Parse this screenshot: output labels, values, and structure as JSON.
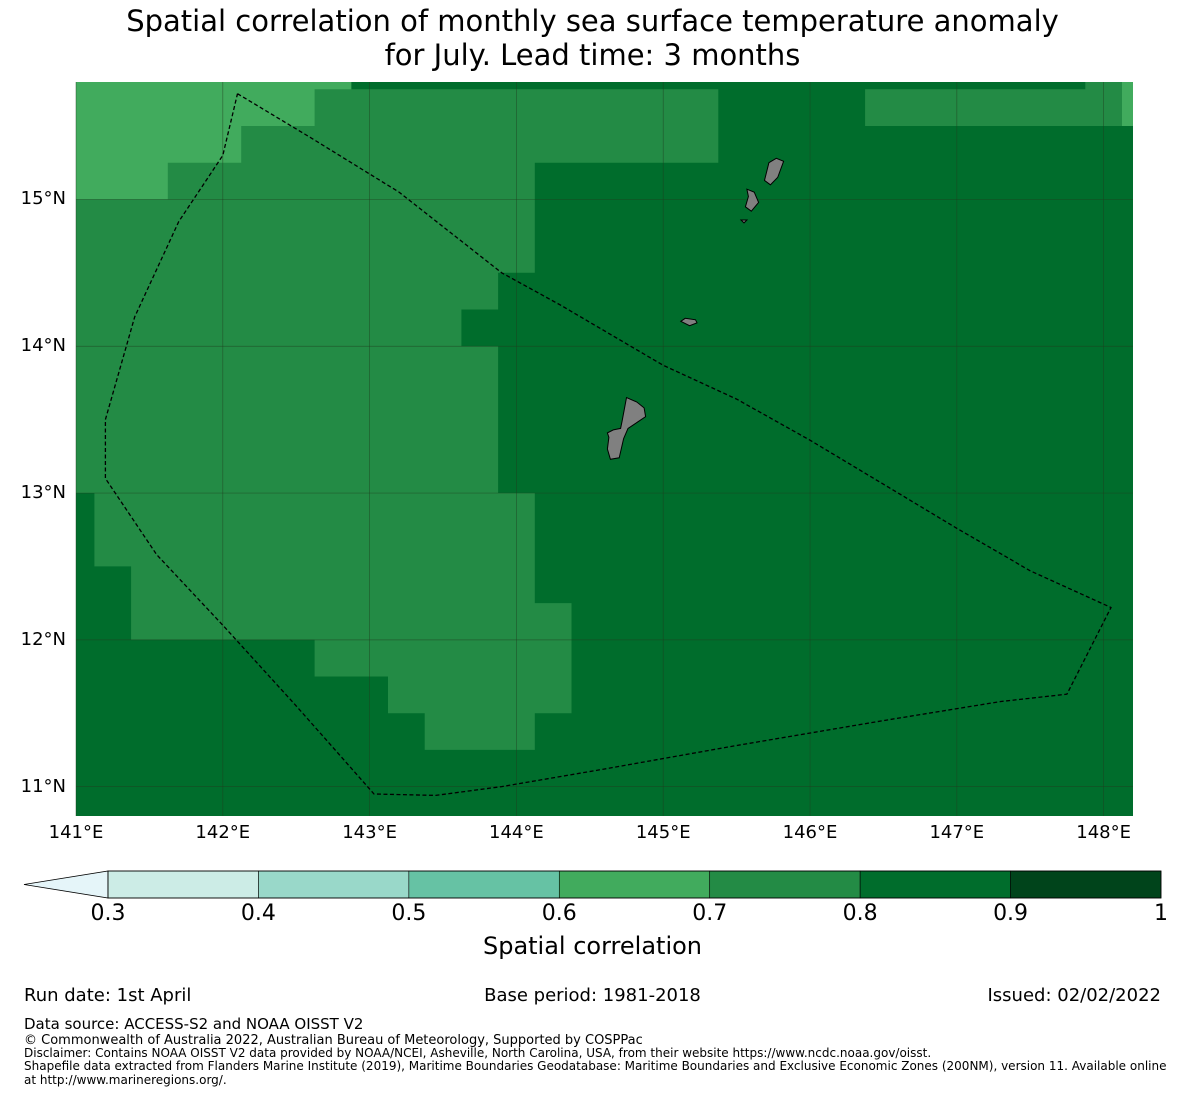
{
  "title_line1": "Spatial correlation of monthly sea surface temperature anomaly",
  "title_line2": "for July. Lead time: 3 months",
  "map": {
    "lon_range": [
      141.0,
      148.2
    ],
    "lat_range": [
      10.8,
      15.8
    ],
    "lat_ticks": [
      {
        "value": 15,
        "label": "15°N"
      },
      {
        "value": 14,
        "label": "14°N"
      },
      {
        "value": 13,
        "label": "13°N"
      },
      {
        "value": 12,
        "label": "12°N"
      },
      {
        "value": 11,
        "label": "11°N"
      }
    ],
    "lon_ticks": [
      {
        "value": 141,
        "label": "141°E"
      },
      {
        "value": 142,
        "label": "142°E"
      },
      {
        "value": 143,
        "label": "143°E"
      },
      {
        "value": 144,
        "label": "144°E"
      },
      {
        "value": 145,
        "label": "145°E"
      },
      {
        "value": 146,
        "label": "146°E"
      },
      {
        "value": 147,
        "label": "147°E"
      },
      {
        "value": 148,
        "label": "148°E"
      }
    ],
    "colors": {
      "class_0_6_0_7": "#41ab5d",
      "class_0_7_0_8": "#238b45",
      "class_0_8_0_9": "#006d2c",
      "land": "#808080",
      "grid": "#1f3d1f"
    },
    "correlation_regions": [
      {
        "class": "class_0_8_0_9",
        "polygon": [
          [
            141.0,
            15.8
          ],
          [
            148.2,
            15.8
          ],
          [
            148.2,
            10.8
          ],
          [
            141.0,
            10.8
          ]
        ]
      },
      {
        "class": "class_0_7_0_8",
        "polygon": [
          [
            141.0,
            15.8
          ],
          [
            142.875,
            15.8
          ],
          [
            142.875,
            15.75
          ],
          [
            145.375,
            15.75
          ],
          [
            145.375,
            15.5
          ],
          [
            146.375,
            15.5
          ],
          [
            146.375,
            15.75
          ],
          [
            147.875,
            15.75
          ],
          [
            147.875,
            15.8
          ],
          [
            148.2,
            15.8
          ],
          [
            148.2,
            15.5
          ],
          [
            145.375,
            15.5
          ],
          [
            145.375,
            15.25
          ],
          [
            144.125,
            15.25
          ],
          [
            144.125,
            15.0
          ],
          [
            144.125,
            14.5
          ],
          [
            143.875,
            14.5
          ],
          [
            143.875,
            14.25
          ],
          [
            143.625,
            14.25
          ],
          [
            143.625,
            14.0
          ],
          [
            143.875,
            14.0
          ],
          [
            143.875,
            13.0
          ],
          [
            144.125,
            13.0
          ],
          [
            144.125,
            12.25
          ],
          [
            144.375,
            12.25
          ],
          [
            144.375,
            11.5
          ],
          [
            144.125,
            11.5
          ],
          [
            144.125,
            11.25
          ],
          [
            143.375,
            11.25
          ],
          [
            143.375,
            11.5
          ],
          [
            143.125,
            11.5
          ],
          [
            143.125,
            11.75
          ],
          [
            142.625,
            11.75
          ],
          [
            142.625,
            12.0
          ],
          [
            141.375,
            12.0
          ],
          [
            141.375,
            12.5
          ],
          [
            141.125,
            12.5
          ],
          [
            141.125,
            13.0
          ],
          [
            141.0,
            13.0
          ]
        ]
      },
      {
        "class": "class_0_6_0_7",
        "polygon": [
          [
            141.0,
            15.8
          ],
          [
            142.875,
            15.8
          ],
          [
            142.875,
            15.75
          ],
          [
            142.625,
            15.75
          ],
          [
            142.625,
            15.5
          ],
          [
            142.125,
            15.5
          ],
          [
            142.125,
            15.25
          ],
          [
            141.625,
            15.25
          ],
          [
            141.625,
            15.0
          ],
          [
            141.0,
            15.0
          ]
        ]
      },
      {
        "class": "class_0_6_0_7",
        "polygon": [
          [
            148.125,
            15.8
          ],
          [
            148.2,
            15.8
          ],
          [
            148.2,
            15.5
          ],
          [
            148.125,
            15.5
          ]
        ]
      }
    ],
    "islands": [
      {
        "name": "Guam",
        "polygon": [
          [
            144.75,
            13.65
          ],
          [
            144.82,
            13.62
          ],
          [
            144.87,
            13.58
          ],
          [
            144.88,
            13.52
          ],
          [
            144.82,
            13.48
          ],
          [
            144.76,
            13.44
          ],
          [
            144.73,
            13.37
          ],
          [
            144.7,
            13.24
          ],
          [
            144.64,
            13.23
          ],
          [
            144.62,
            13.3
          ],
          [
            144.63,
            13.38
          ],
          [
            144.62,
            13.41
          ],
          [
            144.66,
            13.43
          ],
          [
            144.71,
            13.44
          ],
          [
            144.72,
            13.49
          ]
        ]
      },
      {
        "name": "Rota",
        "polygon": [
          [
            145.12,
            14.17
          ],
          [
            145.18,
            14.14
          ],
          [
            145.23,
            14.16
          ],
          [
            145.22,
            14.18
          ],
          [
            145.15,
            14.19
          ]
        ]
      },
      {
        "name": "Tinian",
        "polygon": [
          [
            145.57,
            15.07
          ],
          [
            145.62,
            15.05
          ],
          [
            145.65,
            14.98
          ],
          [
            145.6,
            14.92
          ],
          [
            145.56,
            14.95
          ],
          [
            145.58,
            15.02
          ]
        ]
      },
      {
        "name": "Saipan",
        "polygon": [
          [
            145.72,
            15.25
          ],
          [
            145.77,
            15.28
          ],
          [
            145.82,
            15.26
          ],
          [
            145.78,
            15.15
          ],
          [
            145.73,
            15.1
          ],
          [
            145.69,
            15.13
          ]
        ]
      },
      {
        "name": "Aguijan",
        "polygon": [
          [
            145.53,
            14.86
          ],
          [
            145.57,
            14.86
          ],
          [
            145.55,
            14.84
          ]
        ]
      }
    ],
    "eez_boundary": [
      [
        142.1,
        15.72
      ],
      [
        142.6,
        15.42
      ],
      [
        143.2,
        15.05
      ],
      [
        143.9,
        14.5
      ],
      [
        144.3,
        14.28
      ],
      [
        145.0,
        13.87
      ],
      [
        145.5,
        13.64
      ],
      [
        146.0,
        13.36
      ],
      [
        146.5,
        13.06
      ],
      [
        147.0,
        12.76
      ],
      [
        147.5,
        12.47
      ],
      [
        148.05,
        12.22
      ],
      [
        147.75,
        11.63
      ],
      [
        147.3,
        11.58
      ],
      [
        146.5,
        11.45
      ],
      [
        145.5,
        11.28
      ],
      [
        144.6,
        11.12
      ],
      [
        143.9,
        11.0
      ],
      [
        143.45,
        10.94
      ],
      [
        143.03,
        10.95
      ],
      [
        142.5,
        11.55
      ],
      [
        142.0,
        12.1
      ],
      [
        141.55,
        12.58
      ],
      [
        141.2,
        13.1
      ],
      [
        141.2,
        13.5
      ],
      [
        141.4,
        14.2
      ],
      [
        141.7,
        14.85
      ],
      [
        142.0,
        15.3
      ],
      [
        142.1,
        15.72
      ]
    ]
  },
  "colorbar": {
    "label": "Spatial correlation",
    "levels": [
      0.3,
      0.4,
      0.5,
      0.6,
      0.7,
      0.8,
      0.9,
      1.0
    ],
    "tick_labels": [
      "0.3",
      "0.4",
      "0.5",
      "0.6",
      "0.7",
      "0.8",
      "0.9",
      "1"
    ],
    "under_color": "#e5f5f9",
    "bin_colors": [
      "#ccece6",
      "#99d8c9",
      "#66c2a4",
      "#41ab5d",
      "#238b45",
      "#006d2c",
      "#00441b"
    ]
  },
  "run_date": "Run date: 1st April",
  "base_period": "Base period: 1981-2018",
  "issued": "Issued: 02/02/2022",
  "data_source": "Data source: ACCESS-S2 and NOAA OISST V2",
  "copyright": "© Commonwealth of Australia 2022, Australian Bureau of Meteorology, Supported by COSPPac",
  "disclaimer": "Disclaimer: Contains NOAA OISST V2 data provided by NOAA/NCEI, Asheville, North Carolina, USA, from their website https://www.ncdc.noaa.gov/oisst.",
  "shapefile_line1": "Shapefile data extracted from Flanders Marine Institute (2019), Maritime Boundaries Geodatabase: Maritime Boundaries and Exclusive Economic Zones (200NM), version 11. Available online",
  "shapefile_line2": "at http://www.marineregions.org/."
}
